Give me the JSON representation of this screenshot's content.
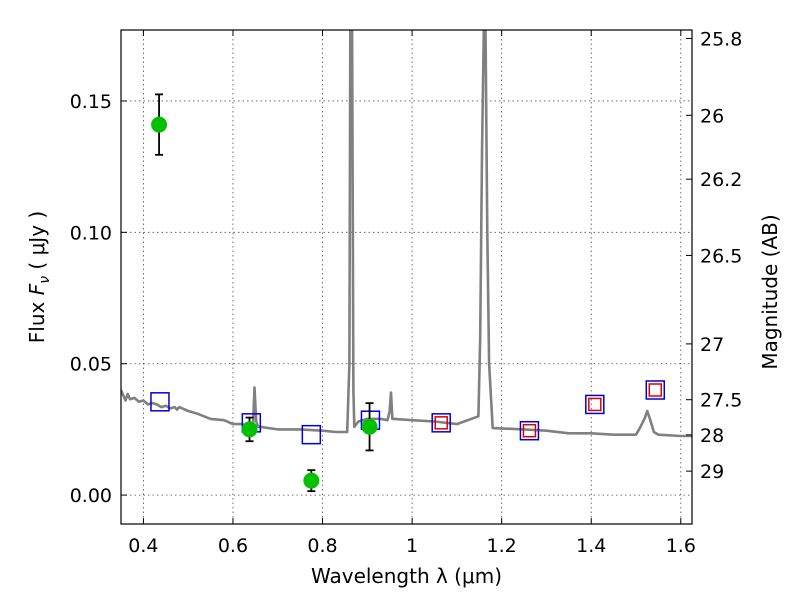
{
  "chart_data": {
    "type": "scatter",
    "title": "",
    "xlabel": "Wavelength  λ (μm)",
    "ylabel": "Flux  F_ν  ( μJy )",
    "ylabel_parts": {
      "prefix": "Flux ",
      "symbol": "F",
      "subscript": "ν",
      "unit": "  ( μJy )"
    },
    "y2label": "Magnitude (AB)",
    "xlim": [
      0.35,
      1.625
    ],
    "ylim": [
      -0.011,
      0.177
    ],
    "grid": true,
    "x_ticks": [
      0.4,
      0.6,
      0.8,
      1.0,
      1.2,
      1.4,
      1.6
    ],
    "x_tick_labels": [
      "0.4",
      "0.6",
      "0.8",
      "1",
      "1.2",
      "1.4",
      "1.6"
    ],
    "y_ticks": [
      0.0,
      0.05,
      0.1,
      0.15
    ],
    "y_tick_labels": [
      "0.00",
      "0.05",
      "0.10",
      "0.15"
    ],
    "y2_ticks": [
      {
        "label": "25.8",
        "mag": 25.8
      },
      {
        "label": "26",
        "mag": 26.0
      },
      {
        "label": "26.2",
        "mag": 26.2
      },
      {
        "label": "26.5",
        "mag": 26.5
      },
      {
        "label": "27",
        "mag": 27.0
      },
      {
        "label": "27.5",
        "mag": 27.5
      },
      {
        "label": "28",
        "mag": 28.0
      },
      {
        "label": "29",
        "mag": 29.0
      }
    ],
    "series": [
      {
        "kind": "observed",
        "marker": "circle",
        "color": "#00c000",
        "x": [
          0.435,
          0.637,
          0.775,
          0.905
        ],
        "y": [
          0.141,
          0.025,
          0.0055,
          0.026
        ],
        "yerr": [
          0.0115,
          0.0045,
          0.004,
          0.009
        ]
      },
      {
        "kind": "model_bandpass",
        "marker": "square",
        "color": "#0000dd",
        "x": [
          0.437,
          0.641,
          0.775,
          0.907,
          1.065,
          1.262,
          1.408,
          1.543
        ],
        "y": [
          0.0355,
          0.0275,
          0.023,
          0.0285,
          0.0275,
          0.0245,
          0.0345,
          0.04
        ]
      },
      {
        "kind": "model_bandpass_small",
        "marker": "square",
        "color": "#dd0000",
        "x": [
          1.065,
          1.262,
          1.408,
          1.543
        ],
        "y": [
          0.0275,
          0.0245,
          0.0345,
          0.04
        ]
      },
      {
        "kind": "sed_model",
        "marker": "line",
        "color": "#808080",
        "x": [
          0.35,
          0.36,
          0.365,
          0.37,
          0.38,
          0.39,
          0.4,
          0.41,
          0.42,
          0.43,
          0.44,
          0.45,
          0.46,
          0.47,
          0.475,
          0.48,
          0.5,
          0.52,
          0.55,
          0.58,
          0.6,
          0.62,
          0.64,
          0.645,
          0.648,
          0.652,
          0.656,
          0.66,
          0.7,
          0.75,
          0.8,
          0.83,
          0.855,
          0.86,
          0.862,
          0.866,
          0.869,
          0.871,
          0.88,
          0.9,
          0.93,
          0.945,
          0.95,
          0.953,
          0.956,
          0.96,
          1.0,
          1.05,
          1.1,
          1.148,
          1.152,
          1.156,
          1.16,
          1.164,
          1.168,
          1.172,
          1.18,
          1.25,
          1.3,
          1.35,
          1.4,
          1.45,
          1.5,
          1.51,
          1.52,
          1.525,
          1.53,
          1.54,
          1.55,
          1.6,
          1.625
        ],
        "y": [
          0.04,
          0.036,
          0.0385,
          0.0365,
          0.037,
          0.0355,
          0.036,
          0.0345,
          0.035,
          0.0345,
          0.0335,
          0.034,
          0.033,
          0.0335,
          0.0325,
          0.0335,
          0.032,
          0.031,
          0.029,
          0.0285,
          0.027,
          0.027,
          0.026,
          0.027,
          0.041,
          0.028,
          0.026,
          0.026,
          0.025,
          0.025,
          0.0245,
          0.024,
          0.024,
          0.05,
          0.177,
          0.177,
          0.04,
          0.026,
          0.028,
          0.029,
          0.029,
          0.0285,
          0.032,
          0.039,
          0.029,
          0.029,
          0.0285,
          0.028,
          0.027,
          0.03,
          0.06,
          0.13,
          0.177,
          0.177,
          0.1,
          0.05,
          0.0255,
          0.025,
          0.0245,
          0.0235,
          0.0235,
          0.023,
          0.023,
          0.026,
          0.0295,
          0.032,
          0.0295,
          0.024,
          0.023,
          0.0225,
          0.0225
        ]
      }
    ]
  }
}
